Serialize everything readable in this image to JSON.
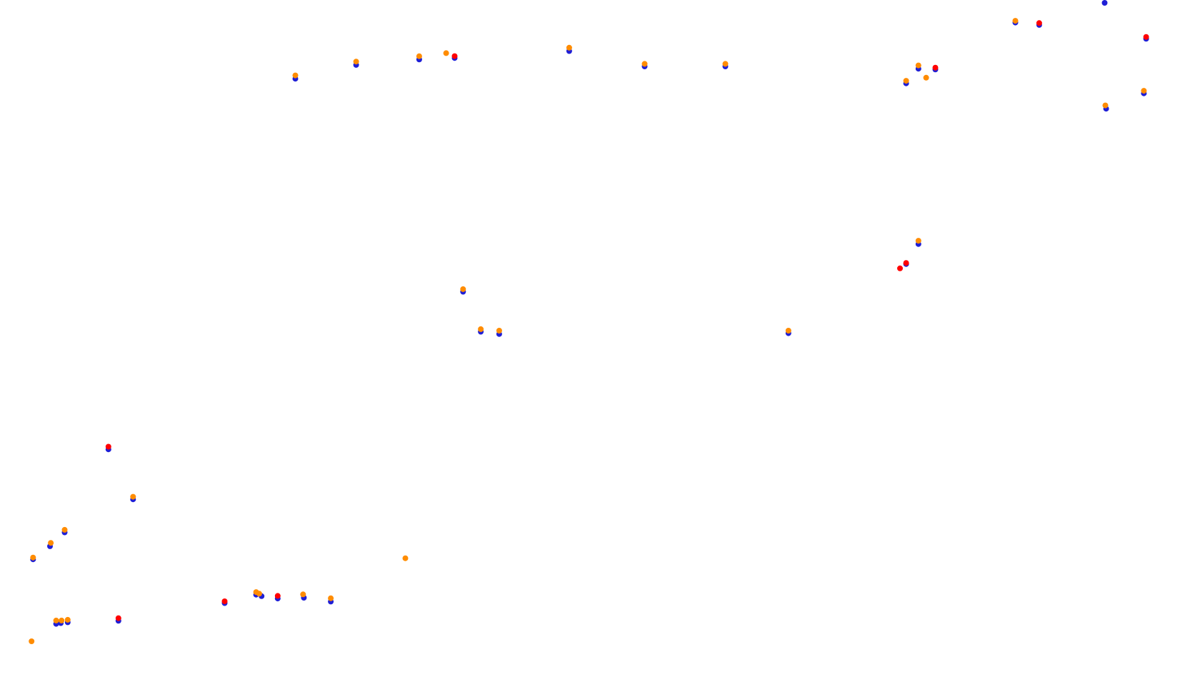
{
  "chart_data": {
    "type": "scatter",
    "title": "",
    "xlabel": "",
    "ylabel": "",
    "grid": false,
    "legend": "none",
    "colors": {
      "blue": "#1f1fd6",
      "red": "#ff0000",
      "orange": "#ff8c00"
    },
    "series": [
      {
        "color": "blue",
        "points": [
          [
            384,
            101
          ],
          [
            463,
            83
          ],
          [
            545,
            76
          ],
          [
            591,
            74
          ],
          [
            740,
            65
          ],
          [
            838,
            85
          ],
          [
            943,
            85
          ],
          [
            1178,
            107
          ],
          [
            1194,
            88
          ],
          [
            1216,
            89
          ],
          [
            1320,
            28
          ],
          [
            1351,
            31
          ],
          [
            1436,
            1
          ],
          [
            1490,
            49
          ],
          [
            1487,
            120
          ],
          [
            1438,
            140
          ],
          [
            1194,
            316
          ],
          [
            1178,
            342
          ],
          [
            602,
            378
          ],
          [
            625,
            430
          ],
          [
            649,
            433
          ],
          [
            1025,
            432
          ],
          [
            141,
            583
          ],
          [
            173,
            648
          ],
          [
            84,
            691
          ],
          [
            65,
            709
          ],
          [
            43,
            726
          ],
          [
            73,
            810
          ],
          [
            79,
            809
          ],
          [
            88,
            808
          ],
          [
            154,
            806
          ],
          [
            292,
            783
          ],
          [
            333,
            772
          ],
          [
            340,
            774
          ],
          [
            361,
            777
          ],
          [
            395,
            776
          ],
          [
            430,
            781
          ]
        ]
      },
      {
        "color": "red",
        "points": [
          [
            591,
            73
          ],
          [
            1216,
            88
          ],
          [
            1351,
            30
          ],
          [
            1490,
            48
          ],
          [
            1178,
            342
          ],
          [
            1170,
            349
          ],
          [
            141,
            581
          ],
          [
            154,
            804
          ],
          [
            292,
            782
          ],
          [
            361,
            775
          ]
        ]
      },
      {
        "color": "orange",
        "points": [
          [
            384,
            99
          ],
          [
            463,
            81
          ],
          [
            545,
            74
          ],
          [
            580,
            70
          ],
          [
            740,
            63
          ],
          [
            838,
            84
          ],
          [
            943,
            84
          ],
          [
            1178,
            106
          ],
          [
            1194,
            86
          ],
          [
            1204,
            102
          ],
          [
            1320,
            28
          ],
          [
            1487,
            119
          ],
          [
            1437,
            138
          ],
          [
            1194,
            314
          ],
          [
            602,
            377
          ],
          [
            625,
            429
          ],
          [
            649,
            431
          ],
          [
            1025,
            431
          ],
          [
            173,
            647
          ],
          [
            84,
            690
          ],
          [
            66,
            707
          ],
          [
            43,
            726
          ],
          [
            73,
            808
          ],
          [
            80,
            808
          ],
          [
            88,
            807
          ],
          [
            41,
            835
          ],
          [
            333,
            771
          ],
          [
            337,
            773
          ],
          [
            394,
            774
          ],
          [
            430,
            779
          ],
          [
            527,
            727
          ]
        ]
      }
    ]
  }
}
